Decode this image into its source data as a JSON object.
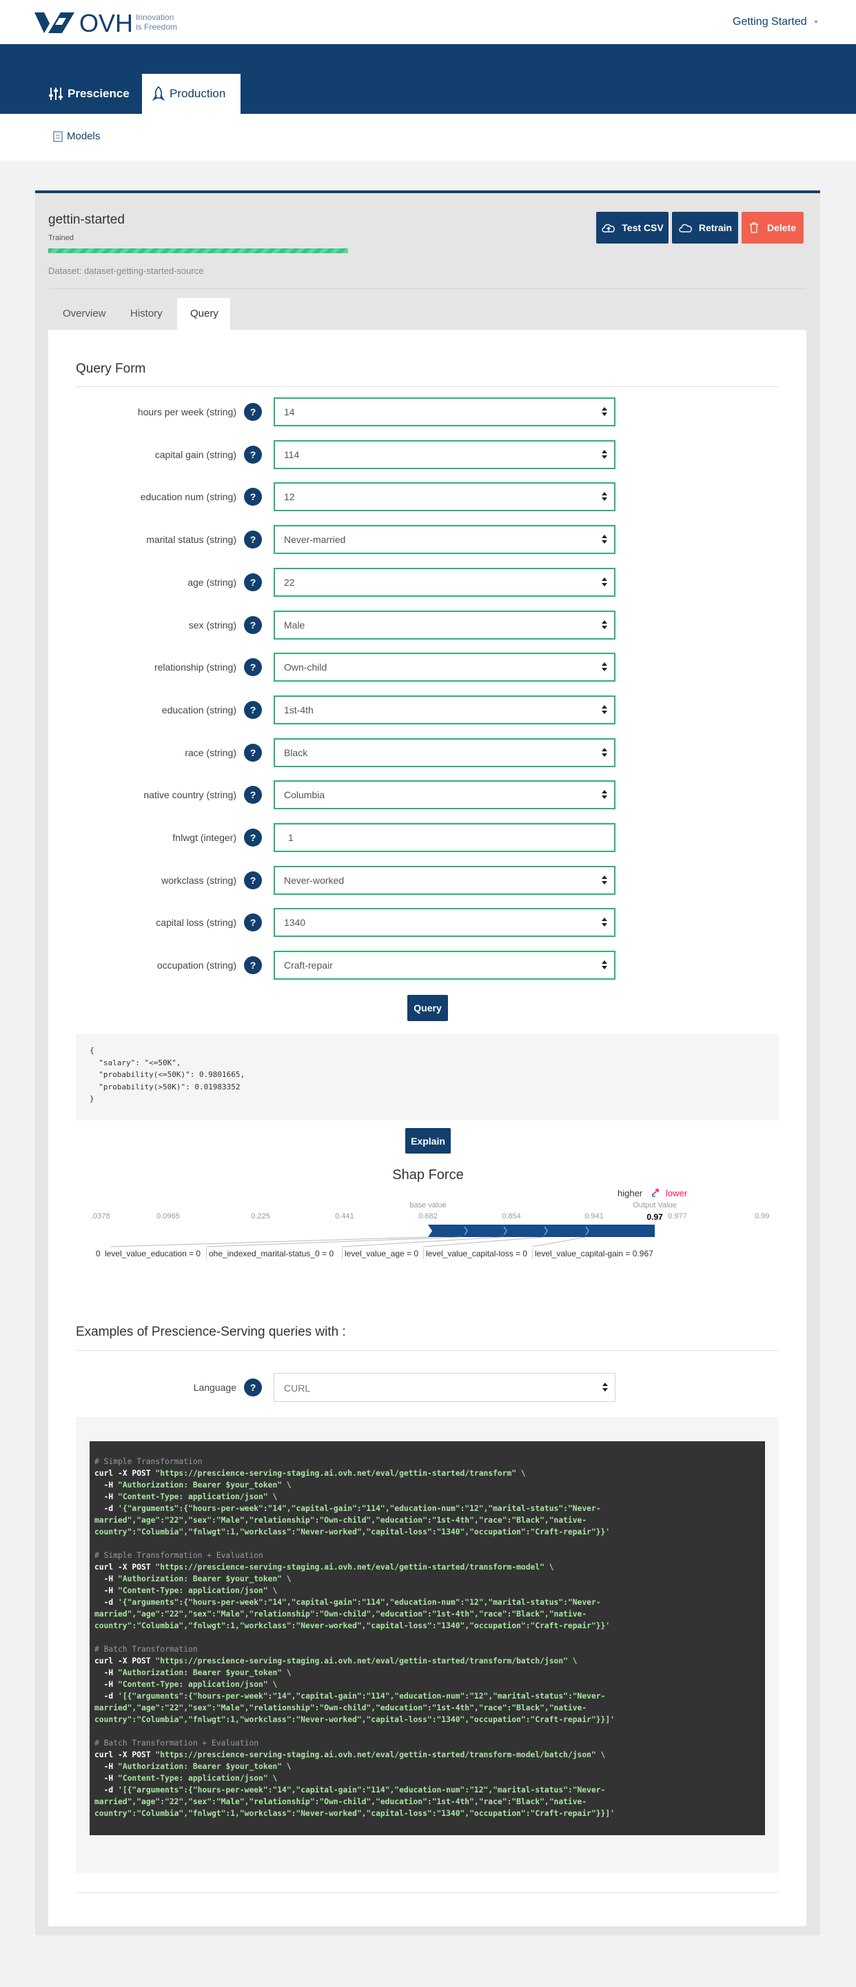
{
  "header": {
    "logo_text": "OVH",
    "tagline_1": "Innovation",
    "tagline_2": "is Freedom",
    "menu": "Getting Started"
  },
  "nav": {
    "tabs": [
      "Prescience",
      "Production"
    ],
    "subnav": "Models"
  },
  "model": {
    "name": "gettin-started",
    "status": "Trained",
    "dataset": "Dataset: dataset-getting-started-source",
    "buttons": [
      "Test CSV",
      "Retrain",
      "Delete"
    ]
  },
  "tabs": [
    "Overview",
    "History",
    "Query"
  ],
  "query_form": {
    "title": "Query Form",
    "help_icon": "?",
    "submit": "Query",
    "fields": [
      {
        "label": "hours per week (string)",
        "value": "14",
        "control": "select"
      },
      {
        "label": "capital gain (string)",
        "value": "114",
        "control": "select"
      },
      {
        "label": "education num (string)",
        "value": "12",
        "control": "select"
      },
      {
        "label": "marital status (string)",
        "value": "Never-married",
        "control": "select"
      },
      {
        "label": "age (string)",
        "value": "22",
        "control": "select"
      },
      {
        "label": "sex (string)",
        "value": "Male",
        "control": "select"
      },
      {
        "label": "relationship (string)",
        "value": "Own-child",
        "control": "select"
      },
      {
        "label": "education (string)",
        "value": "1st-4th",
        "control": "select"
      },
      {
        "label": "race (string)",
        "value": "Black",
        "control": "select"
      },
      {
        "label": "native country (string)",
        "value": "Columbia",
        "control": "select"
      },
      {
        "label": "fnlwgt (integer)",
        "value": "1",
        "control": "text"
      },
      {
        "label": "workclass (string)",
        "value": "Never-worked",
        "control": "select"
      },
      {
        "label": "capital loss (string)",
        "value": "1340",
        "control": "select"
      },
      {
        "label": "occupation (string)",
        "value": "Craft-repair",
        "control": "select"
      }
    ]
  },
  "result": {
    "lines": [
      "{",
      "  \"salary\": \"<=50K\",",
      "  \"probability(<=50K)\": 0.9801665,",
      "  \"probability(>50K)\": 0.01983352",
      "}"
    ]
  },
  "explain": "Explain",
  "shap": {
    "title": "Shap Force",
    "higher": "higher",
    "lower": "lower",
    "base_value": "base value",
    "output_value": "Output Value",
    "axis_ticks": [
      ".0378",
      "0.0965",
      "0.225",
      "0.441",
      "0.682",
      "0.854",
      "0.941",
      "0.97",
      "0.977",
      "0.99"
    ],
    "features": [
      "0",
      "level_value_education = 0",
      "ohe_indexed_marital-status_0 = 0",
      "level_value_age = 0",
      "level_value_capital-loss = 0",
      "level_value_capital-gain = 0.967"
    ]
  },
  "examples": {
    "title": "Examples of Prescience-Serving queries with :",
    "language_label": "Language",
    "language": "CURL",
    "blocks": [
      {
        "comment": "# Simple Transformation",
        "lines": [
          "curl -X POST \"https://prescience-serving-staging.ai.ovh.net/eval/gettin-started/transform\" \\",
          "  -H \"Authorization: Bearer $your_token\" \\",
          "  -H \"Content-Type: application/json\" \\",
          "  -d '{\"arguments\":{\"hours-per-week\":\"14\",\"capital-gain\":\"114\",\"education-num\":\"12\",\"marital-status\":\"Never-",
          "married\",\"age\":\"22\",\"sex\":\"Male\",\"relationship\":\"Own-child\",\"education\":\"1st-4th\",\"race\":\"Black\",\"native-",
          "country\":\"Columbia\",\"fnlwgt\":1,\"workclass\":\"Never-worked\",\"capital-loss\":\"1340\",\"occupation\":\"Craft-repair\"}}'"
        ]
      },
      {
        "comment": "# Simple Transformation + Evaluation",
        "lines": [
          "curl -X POST \"https://prescience-serving-staging.ai.ovh.net/eval/gettin-started/transform-model\" \\",
          "  -H \"Authorization: Bearer $your_token\" \\",
          "  -H \"Content-Type: application/json\" \\",
          "  -d '{\"arguments\":{\"hours-per-week\":\"14\",\"capital-gain\":\"114\",\"education-num\":\"12\",\"marital-status\":\"Never-",
          "married\",\"age\":\"22\",\"sex\":\"Male\",\"relationship\":\"Own-child\",\"education\":\"1st-4th\",\"race\":\"Black\",\"native-",
          "country\":\"Columbia\",\"fnlwgt\":1,\"workclass\":\"Never-worked\",\"capital-loss\":\"1340\",\"occupation\":\"Craft-repair\"}}'"
        ]
      },
      {
        "comment": "# Batch Transformation",
        "lines": [
          "curl -X POST \"https://prescience-serving-staging.ai.ovh.net/eval/gettin-started/transform/batch/json\" \\",
          "  -H \"Authorization: Bearer $your_token\" \\",
          "  -H \"Content-Type: application/json\" \\",
          "  -d '[{\"arguments\":{\"hours-per-week\":\"14\",\"capital-gain\":\"114\",\"education-num\":\"12\",\"marital-status\":\"Never-",
          "married\",\"age\":\"22\",\"sex\":\"Male\",\"relationship\":\"Own-child\",\"education\":\"1st-4th\",\"race\":\"Black\",\"native-",
          "country\":\"Columbia\",\"fnlwgt\":1,\"workclass\":\"Never-worked\",\"capital-loss\":\"1340\",\"occupation\":\"Craft-repair\"}}]'"
        ]
      },
      {
        "comment": "# Batch Transformation + Evaluation",
        "lines": [
          "curl -X POST \"https://prescience-serving-staging.ai.ovh.net/eval/gettin-started/transform-model/batch/json\" \\",
          "  -H \"Authorization: Bearer $your_token\" \\",
          "  -H \"Content-Type: application/json\" \\",
          "  -d '[{\"arguments\":{\"hours-per-week\":\"14\",\"capital-gain\":\"114\",\"education-num\":\"12\",\"marital-status\":\"Never-",
          "married\",\"age\":\"22\",\"sex\":\"Male\",\"relationship\":\"Own-child\",\"education\":\"1st-4th\",\"race\":\"Black\",\"native-",
          "country\":\"Columbia\",\"fnlwgt\":1,\"workclass\":\"Never-worked\",\"capital-loss\":\"1340\",\"occupation\":\"Craft-repair\"}}]'"
        ]
      }
    ]
  }
}
